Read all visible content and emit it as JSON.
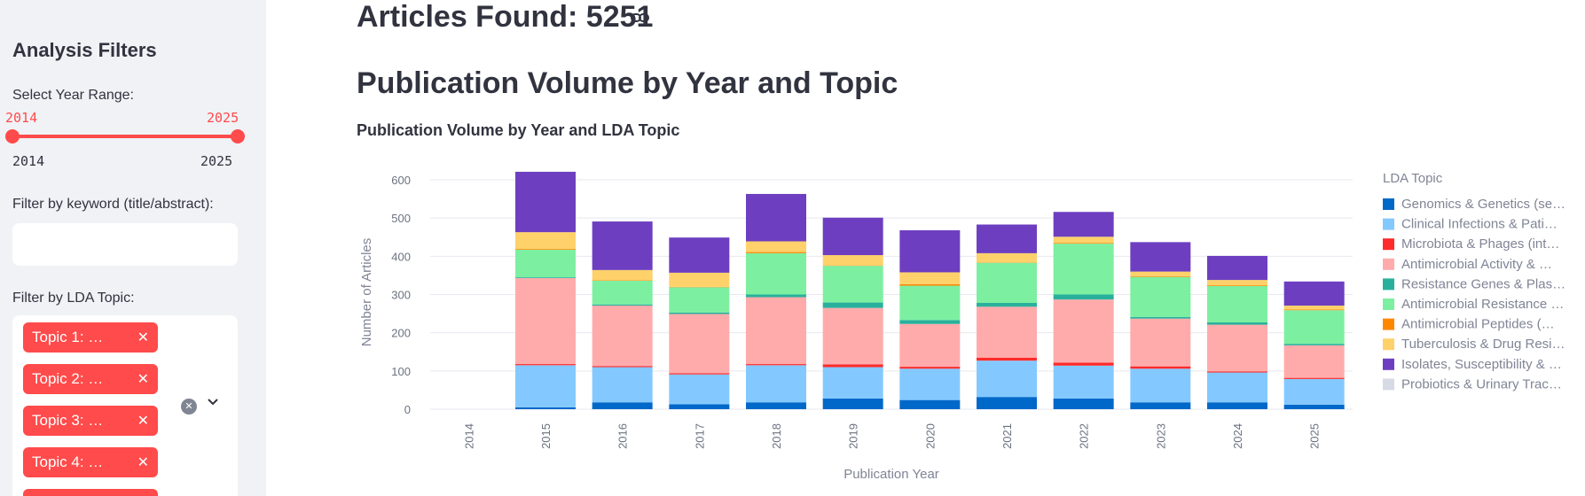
{
  "sidebar": {
    "title": "Analysis Filters",
    "year_range_label": "Select Year Range:",
    "year_range": {
      "min": 2014,
      "max": 2025,
      "selected_start": "2014",
      "selected_end": "2025",
      "tick_min": "2014",
      "tick_max": "2025"
    },
    "keyword_label": "Filter by keyword (title/abstract):",
    "keyword_value": "",
    "topic_label": "Filter by LDA Topic:",
    "topic_chips": [
      "Topic 1: …",
      "Topic 2: …",
      "Topic 3: …",
      "Topic 4: …",
      ""
    ]
  },
  "main": {
    "articles_found": "Articles Found: 5251",
    "section_title": "Publication Volume by Year and Topic"
  },
  "chart_data": {
    "type": "bar",
    "stacked": true,
    "title": "Publication Volume by Year and LDA Topic",
    "xlabel": "Publication Year",
    "ylabel": "Number of Articles",
    "ylim": [
      0,
      620
    ],
    "yticks": [
      0,
      100,
      200,
      300,
      400,
      500,
      600
    ],
    "legend_title": "LDA Topic",
    "legend_position": "right",
    "categories": [
      "2014",
      "2015",
      "2016",
      "2017",
      "2018",
      "2019",
      "2020",
      "2021",
      "2022",
      "2023",
      "2024",
      "2025"
    ],
    "series": [
      {
        "name": "Genomics & Genetics (se…",
        "color": "#0068c9",
        "values": [
          0,
          5,
          18,
          13,
          18,
          28,
          24,
          32,
          28,
          18,
          18,
          12
        ]
      },
      {
        "name": "Clinical Infections & Pati…",
        "color": "#83c9ff",
        "values": [
          0,
          110,
          92,
          78,
          97,
          82,
          82,
          95,
          86,
          88,
          78,
          67
        ]
      },
      {
        "name": "Microbiota & Phages (int…",
        "color": "#ff2b2b",
        "values": [
          0,
          3,
          3,
          3,
          3,
          7,
          5,
          8,
          8,
          6,
          3,
          3
        ]
      },
      {
        "name": "Antimicrobial Activity & …",
        "color": "#ffabab",
        "values": [
          0,
          225,
          158,
          155,
          175,
          148,
          112,
          133,
          165,
          125,
          122,
          85
        ]
      },
      {
        "name": "Resistance Genes & Plas…",
        "color": "#29b09d",
        "values": [
          0,
          2,
          3,
          4,
          7,
          14,
          10,
          10,
          13,
          4,
          6,
          4
        ]
      },
      {
        "name": "Antimicrobial Resistance …",
        "color": "#7defa1",
        "values": [
          0,
          72,
          62,
          66,
          108,
          96,
          90,
          105,
          133,
          105,
          95,
          88
        ]
      },
      {
        "name": "Antimicrobial Peptides (…",
        "color": "#ff8700",
        "values": [
          0,
          2,
          1,
          1,
          3,
          1,
          4,
          1,
          2,
          2,
          2,
          2
        ]
      },
      {
        "name": "Tuberculosis & Drug Resi…",
        "color": "#ffd16a",
        "values": [
          0,
          44,
          27,
          37,
          28,
          27,
          31,
          24,
          16,
          12,
          14,
          10
        ]
      },
      {
        "name": "Isolates, Susceptibility & …",
        "color": "#6d3fc0",
        "values": [
          0,
          158,
          127,
          92,
          124,
          98,
          110,
          75,
          65,
          77,
          63,
          63
        ]
      },
      {
        "name": "Probiotics & Urinary Trac…",
        "color": "#d5dae5",
        "values": [
          0,
          0,
          0,
          0,
          0,
          0,
          0,
          0,
          0,
          0,
          0,
          0
        ]
      }
    ]
  }
}
